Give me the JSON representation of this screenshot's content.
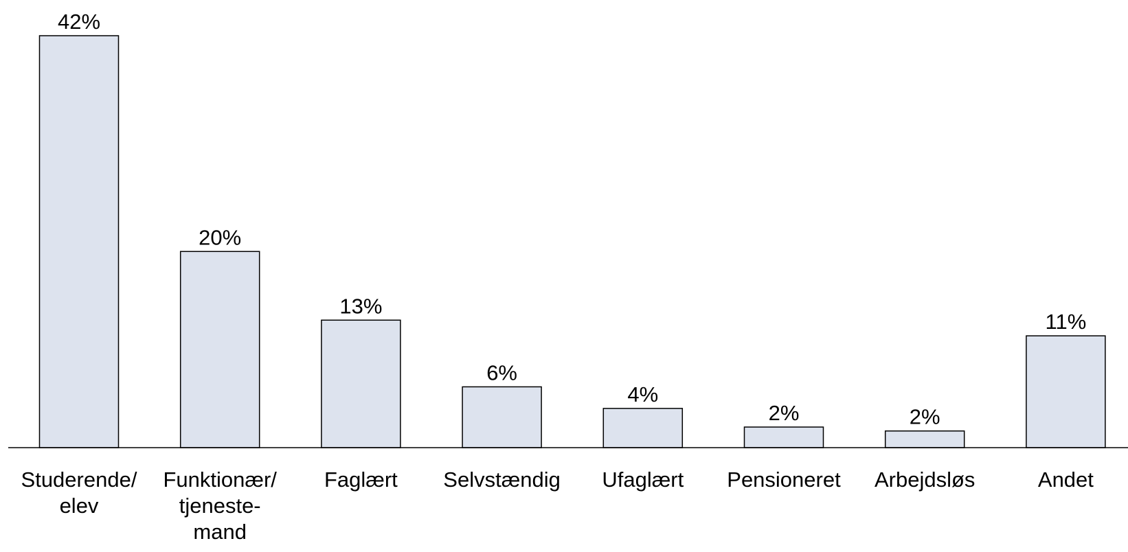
{
  "chart_data": {
    "type": "bar",
    "categories": [
      [
        "Studerende/",
        "elev"
      ],
      [
        "Funktionær/",
        "tjeneste-",
        "mand"
      ],
      [
        "Faglært"
      ],
      [
        "Selvstændig"
      ],
      [
        "Ufaglært"
      ],
      [
        "Pensioneret"
      ],
      [
        "Arbejdsløs"
      ],
      [
        "Andet"
      ]
    ],
    "values": [
      42,
      20,
      13,
      6.2,
      4,
      2.1,
      1.7,
      11.4
    ],
    "value_labels": [
      "42%",
      "20%",
      "13%",
      "6%",
      "4%",
      "2%",
      "2%",
      "11%"
    ],
    "color": "#dde3ee"
  }
}
